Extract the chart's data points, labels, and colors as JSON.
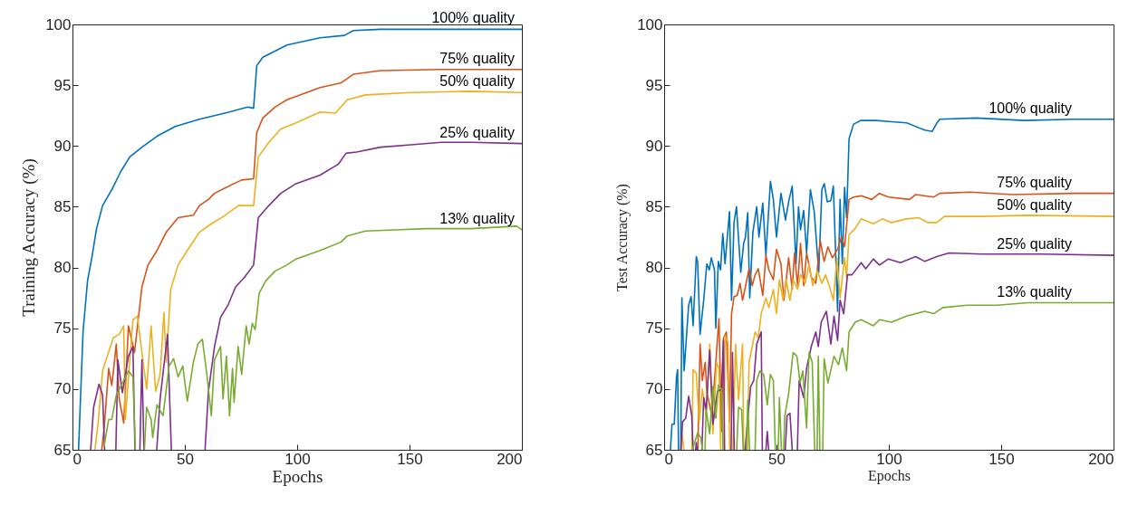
{
  "chart_data": [
    {
      "type": "line",
      "xlabel": "Epochs",
      "ylabel": "Training Accuracy (%)",
      "xlim": [
        0,
        200
      ],
      "ylim": [
        65,
        100
      ],
      "xticks": [
        0,
        50,
        100,
        150,
        200
      ],
      "yticks": [
        65,
        70,
        75,
        80,
        85,
        90,
        95,
        100
      ],
      "grid": false,
      "line_style": "solid",
      "series": [
        {
          "name": "100% quality",
          "color": "#0072bd",
          "x": [
            2.7,
            4.7,
            6.7,
            8.7,
            10.7,
            13.4,
            17.5,
            21.5,
            25.5,
            30.9,
            37.6,
            45.7,
            56.5,
            69.9,
            78,
            80.6,
            82,
            84.7,
            90.1,
            95.4,
            110.2,
            121,
            125,
            137.1,
            164,
            200
          ],
          "values": [
            65,
            74.7,
            78.9,
            80.9,
            83.2,
            85.1,
            86.4,
            87.9,
            89.1,
            89.9,
            90.8,
            91.6,
            92.2,
            92.8,
            93.2,
            93.1,
            96.6,
            97.3,
            97.8,
            98.3,
            98.9,
            99.1,
            99.5,
            99.6,
            99.6,
            99.6
          ]
        },
        {
          "name": "75% quality",
          "color": "#d95319",
          "x": [
            13,
            14.1,
            16.1,
            17.5,
            19.5,
            20.8,
            22.8,
            24.9,
            27.6,
            30.9,
            33.6,
            37.6,
            41.7,
            47,
            53.8,
            56.5,
            60.5,
            63.2,
            68.5,
            75.3,
            80.6,
            82,
            84.7,
            90.1,
            95.4,
            110.2,
            119.6,
            125,
            137.1,
            164,
            200
          ],
          "values": [
            65,
            66.8,
            71.7,
            70.3,
            73.7,
            69.2,
            67.2,
            75.2,
            73.0,
            78.4,
            80.2,
            81.4,
            82.9,
            84.1,
            84.3,
            85.1,
            85.6,
            86.1,
            86.6,
            87.2,
            87.3,
            91.1,
            92.3,
            93.2,
            93.8,
            94.8,
            95.2,
            95.9,
            96.2,
            96.3,
            96.3
          ]
        },
        {
          "name": "50% quality",
          "color": "#edb120",
          "x": [
            10,
            11.4,
            13.4,
            18.1,
            20.8,
            22.8,
            23.5,
            26.9,
            28.9,
            30.9,
            33,
            35,
            37,
            39,
            40.7,
            41.7,
            43.7,
            47,
            51.1,
            56.5,
            61.8,
            67.2,
            73.9,
            80.6,
            82.7,
            87.4,
            92.7,
            99.5,
            110.2,
            117,
            122.3,
            130.4,
            150.6,
            177.4,
            200
          ],
          "values": [
            65,
            67.2,
            71.5,
            74.2,
            74.5,
            75.2,
            67.5,
            75.7,
            76.0,
            73.0,
            70.0,
            75.2,
            69.8,
            71.2,
            76.3,
            72.2,
            78.2,
            80.2,
            81.4,
            82.9,
            83.6,
            84.2,
            85.1,
            85.1,
            89.1,
            90.3,
            91.4,
            91.9,
            92.8,
            92.7,
            93.8,
            94.2,
            94.4,
            94.5,
            94.4
          ]
        },
        {
          "name": "25% quality",
          "color": "#7e2f8e",
          "x": [
            8.1,
            9.4,
            11.8,
            13.4,
            14.3,
            15,
            19.3,
            20.2,
            22.2,
            24.9,
            26.9,
            27.8,
            28.5,
            30,
            30.9,
            31.8,
            32.5,
            37.5,
            39,
            42.3,
            44,
            45,
            59,
            60.5,
            63.2,
            65.9,
            69.2,
            72.6,
            76.6,
            80.6,
            82.7,
            87.4,
            92.7,
            99.5,
            110.2,
            118.3,
            121.7,
            126.4,
            137.1,
            150.6,
            164,
            177.4,
            200
          ],
          "values": [
            65,
            68.5,
            70.4,
            69.5,
            65,
            null,
            65,
            72.4,
            69.7,
            72.7,
            73.5,
            65,
            null,
            65,
            72.4,
            65,
            null,
            65,
            69.2,
            74.5,
            65,
            null,
            65,
            69.8,
            73.5,
            75.9,
            76.9,
            78.4,
            79.2,
            80.2,
            84.1,
            85.1,
            86.1,
            86.9,
            87.6,
            88.5,
            89.4,
            89.5,
            89.9,
            90.1,
            90.3,
            90.3,
            90.2
          ]
        },
        {
          "name": "13% quality",
          "color": "#77ac30",
          "x": [
            14.1,
            16.1,
            17.5,
            19.5,
            22.8,
            24.9,
            26.9,
            28,
            29,
            32,
            33,
            35,
            35.7,
            37.6,
            40.3,
            43,
            45,
            47,
            49.1,
            51.1,
            53.8,
            55.8,
            57.8,
            59.8,
            61.8,
            63.2,
            65.9,
            67,
            68.5,
            69.9,
            71.2,
            71.9,
            73.7,
            75.3,
            77.3,
            78.6,
            80,
            81.3,
            83.1,
            86,
            90.1,
            95.4,
            99.5,
            110.2,
            119.6,
            122.3,
            130.4,
            143.8,
            157.3,
            177.4,
            197.6,
            200
          ],
          "values": [
            65.3,
            67.5,
            67.5,
            69.5,
            70.7,
            71.5,
            71.0,
            65,
            null,
            65,
            68.5,
            67.5,
            66.0,
            68.7,
            67.8,
            71.9,
            72.5,
            71.0,
            71.9,
            69.0,
            72.2,
            73.7,
            74.1,
            71.2,
            67.8,
            72.4,
            73.5,
            69.2,
            72.7,
            67.8,
            71.7,
            68.9,
            73.5,
            71.2,
            75.2,
            73.7,
            75.4,
            74.9,
            77.9,
            78.9,
            79.7,
            80.2,
            80.7,
            81.4,
            82.1,
            82.6,
            83.0,
            83.1,
            83.2,
            83.2,
            83.4,
            83.1
          ]
        }
      ]
    },
    {
      "type": "line",
      "xlabel": "Epochs",
      "ylabel": "Test Accuracy (%)",
      "xlim": [
        0,
        200
      ],
      "ylim": [
        65,
        100
      ],
      "xticks": [
        0,
        50,
        100,
        150,
        200
      ],
      "yticks": [
        65,
        70,
        75,
        80,
        85,
        90,
        95,
        100
      ],
      "grid": false,
      "line_style": "solid",
      "series": [
        {
          "name": "100% quality",
          "color": "#0072bd",
          "x": [
            2.8,
            3.5,
            4.5,
            5.5,
            6,
            6.4,
            6.8,
            7.4,
            7.9,
            8.9,
            10.9,
            12,
            12.9,
            14.3,
            14.9,
            16,
            17.6,
            19,
            20.1,
            21,
            22.4,
            23,
            24.1,
            25.1,
            26.1,
            27.1,
            29.1,
            30,
            31.1,
            32.2,
            34.1,
            35.4,
            36.2,
            37.2,
            38.1,
            39.5,
            41.2,
            42.2,
            43.9,
            45.3,
            47.3,
            48.6,
            50,
            52,
            54,
            55.4,
            57,
            58.7,
            59.8,
            60.7,
            62.1,
            63.4,
            65.1,
            66.8,
            68.8,
            70.2,
            71.3,
            72.6,
            74.2,
            75.3,
            77.2,
            78.3,
            79.3,
            80.3,
            81.2,
            82.3,
            84.3,
            87.7,
            94.4,
            101.2,
            107.9,
            116,
            119.3,
            121.4,
            122.7,
            138.9,
            160.4,
            182,
            200
          ],
          "values": [
            65,
            67.1,
            67.1,
            71.0,
            71.6,
            65,
            null,
            65,
            77.5,
            71.5,
            76.9,
            77.6,
            75.2,
            80.9,
            80.5,
            74.5,
            77.3,
            80.3,
            79.8,
            80.8,
            79.8,
            75.0,
            80.5,
            79.8,
            82.8,
            80.3,
            84.6,
            77.3,
            83.7,
            85.0,
            79.6,
            82.0,
            82.5,
            84.5,
            77.5,
            82.9,
            85.0,
            82.5,
            85.3,
            81.0,
            87.1,
            85.6,
            82.5,
            86.1,
            83.9,
            85.4,
            86.7,
            80.3,
            85.0,
            83.1,
            84.7,
            81.2,
            86.4,
            84.6,
            79.6,
            86.4,
            86.9,
            85.4,
            85.5,
            86.7,
            76.4,
            85.6,
            80.3,
            86.6,
            84.1,
            90.6,
            91.8,
            92.1,
            92.1,
            92.0,
            91.9,
            91.3,
            91.2,
            91.9,
            92.2,
            92.3,
            92.1,
            92.2,
            92.2
          ]
        },
        {
          "name": "75% quality",
          "color": "#d95319",
          "x": [
            15,
            16,
            17,
            18.3,
            19,
            21.2,
            22.4,
            24.4,
            25.5,
            26.4,
            27.7,
            29.1,
            30,
            31.1,
            32.5,
            33.8,
            34.9,
            36.5,
            37.8,
            39.2,
            40.5,
            41.9,
            43.9,
            45.3,
            46.6,
            48.6,
            50,
            52,
            53.3,
            55.4,
            57,
            58,
            59.4,
            60.7,
            62.1,
            63.4,
            65.5,
            67.5,
            69.5,
            71.2,
            72.9,
            74.9,
            77.2,
            78.9,
            80.3,
            82.3,
            84.3,
            87.7,
            92.4,
            95.8,
            99.8,
            109.2,
            112,
            120,
            122.7,
            136.2,
            155,
            182,
            200
          ],
          "values": [
            65,
            73.7,
            70.7,
            72.2,
            69.8,
            67.8,
            70.7,
            75.8,
            66.5,
            74.2,
            74.7,
            67.3,
            76.2,
            77.6,
            77.7,
            78.7,
            77.3,
            78.7,
            79.9,
            78.5,
            79.4,
            79.9,
            77.7,
            81.0,
            79.8,
            79.0,
            81.5,
            80.3,
            77.3,
            80.8,
            78.2,
            81.2,
            78.5,
            82.0,
            78.5,
            81.2,
            79.2,
            78.7,
            82.2,
            80.5,
            81.7,
            80.8,
            81.5,
            82.5,
            81.7,
            85.6,
            85.8,
            85.9,
            85.6,
            86.1,
            85.8,
            85.6,
            86.0,
            85.8,
            86.1,
            86.2,
            86.0,
            86.1,
            86.1
          ]
        },
        {
          "name": "50% quality",
          "color": "#edb120",
          "x": [
            7.5,
            8,
            8.8,
            9.5,
            12.3,
            12.9,
            14.3,
            15.6,
            17,
            18.7,
            20.3,
            21.7,
            23.3,
            24.4,
            25.2,
            26,
            26.6,
            27.1,
            28.4,
            29.2,
            29.9,
            30.6,
            31.8,
            33.1,
            34.9,
            35.4,
            36.2,
            37,
            37.8,
            40.5,
            41.9,
            43.2,
            45.3,
            46.6,
            48.6,
            50,
            51.3,
            52.9,
            54.3,
            56,
            57.4,
            59.4,
            60.7,
            62.8,
            64.5,
            66.1,
            68.2,
            70.2,
            71.8,
            73.5,
            75.3,
            76.9,
            78.3,
            80.3,
            81.2,
            82.3,
            85,
            87.7,
            93.1,
            97.1,
            101.2,
            107.9,
            113.3,
            117.3,
            121.4,
            124.7,
            141.6,
            161.8,
            200
          ],
          "values": [
            65,
            66.3,
            65,
            null,
            65,
            71.6,
            71.3,
            67.3,
            70.0,
            67.8,
            73.7,
            66.3,
            72.2,
            71.7,
            65,
            null,
            65,
            74.4,
            73.9,
            65,
            null,
            65,
            73.7,
            69.1,
            73.7,
            65,
            null,
            65,
            72.2,
            74.7,
            74.2,
            76.2,
            77.5,
            76.7,
            78.2,
            76.2,
            79.0,
            77.3,
            79.0,
            77.3,
            79.0,
            78.2,
            79.4,
            78.7,
            80.3,
            78.5,
            79.7,
            78.7,
            79.4,
            78.5,
            77.3,
            80.8,
            77.5,
            80.8,
            79.2,
            82.7,
            83.2,
            84.0,
            83.6,
            84.0,
            83.7,
            84.0,
            84.1,
            83.7,
            83.7,
            84.2,
            84.2,
            84.3,
            84.2
          ]
        },
        {
          "name": "25% quality",
          "color": "#7e2f8e",
          "x": [
            7.5,
            8.2,
            9.6,
            10.9,
            12.3,
            12.9,
            13.5,
            14,
            14.3,
            14.7,
            15.5,
            16.8,
            17.6,
            18.7,
            20.3,
            21.7,
            23.7,
            25.5,
            26.4,
            26.9,
            27.5,
            29.8,
            30.4,
            31.2,
            32,
            36,
            38.5,
            39.9,
            41.2,
            43.2,
            43.7,
            44.5,
            45.3,
            45.9,
            46.5,
            47,
            53.9,
            54.7,
            56,
            57,
            57.5,
            59.3,
            60.1,
            62.1,
            63.4,
            65.5,
            67.5,
            68.6,
            69.9,
            72.2,
            74.2,
            75.6,
            77.2,
            78.3,
            79.9,
            81.6,
            83.6,
            87.7,
            89.7,
            93.1,
            95.8,
            99.8,
            105.2,
            111.9,
            116,
            121.4,
            126.8,
            141.6,
            168.5,
            200
          ],
          "values": [
            65,
            67.3,
            67.6,
            69.4,
            67.8,
            65,
            null,
            65,
            65.6,
            65,
            null,
            65,
            69.3,
            68.3,
            73.2,
            67.1,
            69.8,
            70.0,
            74.0,
            65,
            null,
            65,
            73.0,
            65,
            null,
            65,
            70.2,
            70.7,
            73.7,
            74.7,
            65,
            null,
            65,
            66.5,
            65,
            null,
            65,
            67.8,
            68.0,
            65,
            null,
            65,
            70.7,
            69.3,
            71.7,
            73.5,
            74.7,
            73.5,
            75.5,
            76.4,
            73.7,
            76.0,
            74.0,
            77.3,
            76.2,
            79.4,
            79.4,
            80.4,
            79.9,
            80.7,
            80.2,
            80.7,
            80.4,
            80.9,
            80.5,
            80.9,
            81.2,
            81.1,
            81.1,
            81.0
          ]
        },
        {
          "name": "13% quality",
          "color": "#77ac30",
          "x": [
            12.5,
            12.9,
            14.9,
            16.3,
            17,
            17.6,
            18.2,
            18.7,
            20.3,
            21.7,
            23,
            24.1,
            25.5,
            26.2,
            27,
            32.3,
            33.1,
            34.5,
            35.2,
            35.8,
            36.6,
            37.2,
            38,
            39,
            40.5,
            41.2,
            42.6,
            44.3,
            45.9,
            47.3,
            48.6,
            49.5,
            50.2,
            50.8,
            51.3,
            52.2,
            52.8,
            53.2,
            53.7,
            55.4,
            57.4,
            59.1,
            60.5,
            61.7,
            63.4,
            64.5,
            65.9,
            67,
            67.6,
            68.1,
            68.6,
            69.3,
            69.9,
            70.6,
            71.2,
            72.9,
            75.6,
            77.6,
            79.3,
            81.2,
            82.3,
            85,
            87.7,
            93.1,
            95.8,
            101.2,
            107.9,
            116,
            120,
            124,
            134.8,
            148.3,
            161.8,
            182,
            200
          ],
          "values": [
            65,
            65.2,
            66.4,
            66.0,
            65,
            null,
            65,
            68.3,
            66.3,
            70.2,
            67.6,
            70.3,
            70.0,
            65,
            null,
            65,
            68.5,
            68.3,
            65,
            null,
            65,
            69.1,
            65,
            null,
            65,
            70.7,
            71.5,
            71.2,
            68.7,
            71.2,
            70.7,
            65,
            null,
            65,
            69.3,
            65,
            null,
            65,
            67.8,
            69.6,
            73.0,
            72.7,
            70.5,
            71.5,
            66.8,
            73.0,
            72.2,
            65,
            null,
            65,
            72.7,
            65,
            null,
            65,
            72.5,
            70.5,
            72.7,
            72.0,
            73.4,
            71.5,
            74.7,
            75.5,
            75.7,
            75.2,
            75.7,
            75.5,
            76.0,
            76.4,
            76.2,
            76.7,
            76.9,
            76.9,
            77.1,
            77.1,
            77.1
          ]
        }
      ]
    }
  ]
}
